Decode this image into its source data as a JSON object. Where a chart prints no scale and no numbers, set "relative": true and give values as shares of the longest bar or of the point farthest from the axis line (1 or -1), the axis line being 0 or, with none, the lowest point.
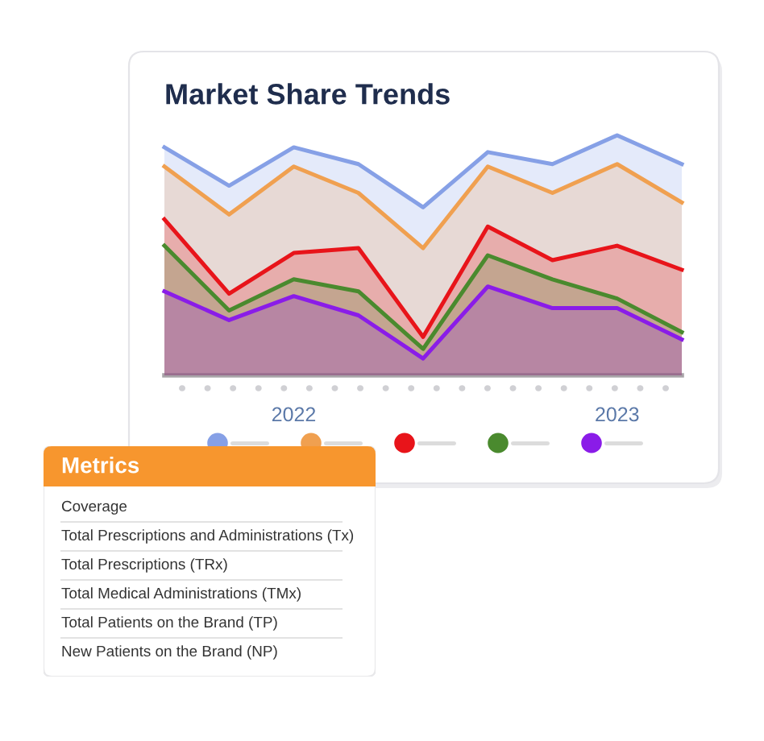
{
  "chart_data": [
    {
      "type": "area",
      "title": "Market Share Trends",
      "relative": true,
      "categories": [
        null,
        null,
        "2022",
        null,
        null,
        null,
        null,
        "2023",
        null
      ],
      "series": [
        {
          "color": "#86a0e6",
          "values": [
            0.95,
            0.79,
            0.95,
            0.88,
            0.7,
            0.93,
            0.88,
            1.0,
            0.88
          ]
        },
        {
          "color": "#f0a050",
          "values": [
            0.87,
            0.67,
            0.87,
            0.76,
            0.53,
            0.87,
            0.76,
            0.88,
            0.72
          ]
        },
        {
          "color": "#e8141a",
          "values": [
            0.65,
            0.34,
            0.51,
            0.53,
            0.16,
            0.62,
            0.48,
            0.54,
            0.44
          ]
        },
        {
          "color": "#4a8a2e",
          "values": [
            0.54,
            0.27,
            0.4,
            0.35,
            0.11,
            0.5,
            0.4,
            0.32,
            0.18
          ]
        },
        {
          "color": "#8a1ce8",
          "values": [
            0.35,
            0.23,
            0.33,
            0.25,
            0.07,
            0.37,
            0.28,
            0.28,
            0.15
          ]
        }
      ]
    },
    {
      "type": "other",
      "title": "Metrics",
      "annotations": [
        "Coverage",
        "Total Prescriptions and Administrations (Tx)",
        "Total Prescriptions (TRx)",
        "Total Medical Administrations (TMx)",
        "Total Patients on the Brand (TP)",
        "New Patients on the Brand (NP)"
      ]
    }
  ]
}
